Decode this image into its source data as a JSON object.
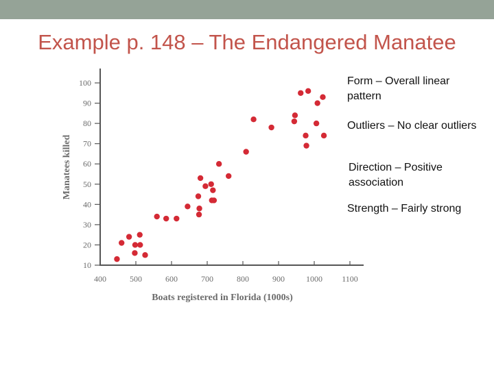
{
  "slide": {
    "title": "Example p. 148 – The Endangered Manatee",
    "bar_color": "#95a397",
    "title_color": "#c2544b"
  },
  "notes": [
    "Form – Overall linear pattern",
    "Outliers – No clear outliers",
    "Direction – Positive association",
    "Strength – Fairly strong"
  ],
  "chart_data": {
    "type": "scatter",
    "xlabel": "Boats registered in Florida (1000s)",
    "ylabel": "Manatees killed",
    "xlim": [
      400,
      1100
    ],
    "ylim": [
      10,
      100
    ],
    "xticks": [
      400,
      500,
      600,
      700,
      800,
      900,
      1000,
      1100
    ],
    "yticks": [
      10,
      20,
      30,
      40,
      50,
      60,
      70,
      80,
      90,
      100
    ],
    "point_color": "#d42a35",
    "grid": false,
    "series": [
      {
        "x": [
          447,
          460,
          481,
          497,
          498,
          511,
          512,
          526,
          559,
          585,
          614,
          645,
          675,
          677,
          678,
          681,
          695,
          711,
          713,
          716,
          733,
          719,
          760,
          809,
          830,
          880,
          944,
          946,
          962,
          976,
          978,
          983,
          1006,
          1009,
          1024,
          1027
        ],
        "y": [
          13,
          21,
          24,
          16,
          20,
          25,
          20,
          15,
          34,
          33,
          33,
          39,
          44,
          35,
          38,
          53,
          49,
          50,
          42,
          47,
          60,
          42,
          54,
          66,
          82,
          78,
          81,
          84,
          95,
          74,
          69,
          96,
          80,
          90,
          93,
          74
        ]
      }
    ]
  }
}
